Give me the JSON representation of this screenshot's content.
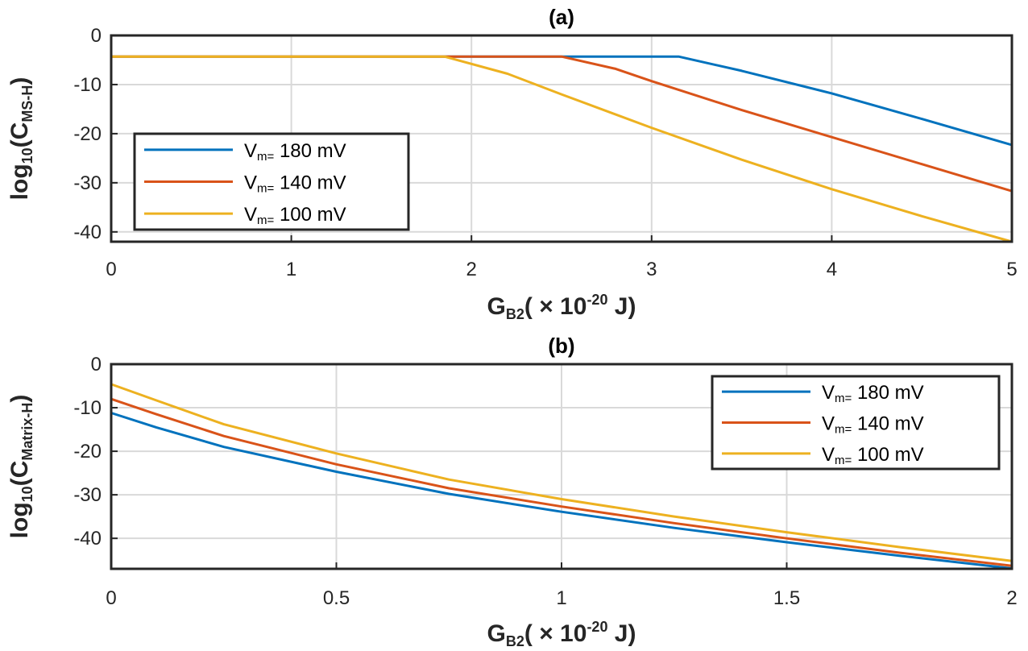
{
  "chart_data": [
    {
      "type": "line",
      "title": "(a)",
      "xlabel": {
        "main": "G",
        "sub": "B2",
        "rest": "( ×  10",
        "sup": "-20",
        "unit": "  J)"
      },
      "ylabel": {
        "main": "log",
        "sub1": "10",
        "open": "(C",
        "sub2": "MS-H",
        "close": ")"
      },
      "xlim": [
        0,
        5
      ],
      "ylim": [
        -42,
        0
      ],
      "xticks": [
        0,
        1,
        2,
        3,
        4,
        5
      ],
      "xtick_labels": [
        "0",
        "1",
        "2",
        "3",
        "4",
        "5"
      ],
      "yticks": [
        0,
        -10,
        -20,
        -30,
        -40
      ],
      "ytick_labels": [
        "0",
        "-10",
        "-20",
        "-30",
        "-40"
      ],
      "grid": true,
      "legend_position": "bottom-left",
      "series": [
        {
          "name": "180",
          "legend_var": "V",
          "legend_sub": "m=",
          "legend_unit": "mV",
          "color": "#0072BD",
          "x": [
            0,
            1,
            2,
            3,
            3.15,
            3.5,
            4,
            4.5,
            5
          ],
          "y": [
            -4.3,
            -4.3,
            -4.3,
            -4.3,
            -4.3,
            -7.2,
            -11.8,
            -17.0,
            -22.3
          ]
        },
        {
          "name": "140",
          "legend_var": "V",
          "legend_sub": "m=",
          "legend_unit": "mV",
          "color": "#D95319",
          "x": [
            0,
            1,
            2,
            2.5,
            2.8,
            3,
            3.5,
            4,
            4.5,
            5
          ],
          "y": [
            -4.3,
            -4.3,
            -4.3,
            -4.3,
            -6.8,
            -9.3,
            -15.2,
            -20.7,
            -26.2,
            -31.7
          ]
        },
        {
          "name": "100",
          "legend_var": "V",
          "legend_sub": "m=",
          "legend_unit": "mV",
          "color": "#EDB120",
          "x": [
            0,
            1,
            1.85,
            2.2,
            2.5,
            3,
            3.5,
            4,
            4.5,
            5
          ],
          "y": [
            -4.3,
            -4.3,
            -4.3,
            -7.8,
            -12.0,
            -18.8,
            -25.3,
            -31.3,
            -36.8,
            -42.0
          ]
        }
      ]
    },
    {
      "type": "line",
      "title": "(b)",
      "xlabel": {
        "main": "G",
        "sub": "B2",
        "rest": "( ×  10",
        "sup": "-20",
        "unit": "  J)"
      },
      "ylabel": {
        "main": "log",
        "sub1": "10",
        "open": "(C",
        "sub2": "Matrix-H",
        "close": ")"
      },
      "xlim": [
        0,
        2
      ],
      "ylim": [
        -47,
        0
      ],
      "xticks": [
        0,
        0.5,
        1,
        1.5,
        2
      ],
      "xtick_labels": [
        "0",
        "0.5",
        "1",
        "1.5",
        "2"
      ],
      "yticks": [
        0,
        -10,
        -20,
        -30,
        -40
      ],
      "ytick_labels": [
        "0",
        "-10",
        "-20",
        "-30",
        "-40"
      ],
      "grid": true,
      "legend_position": "top-right",
      "series": [
        {
          "name": "180",
          "legend_var": "V",
          "legend_sub": "m=",
          "legend_unit": "mV",
          "color": "#0072BD",
          "x": [
            0,
            0.1,
            0.25,
            0.5,
            0.75,
            1,
            1.25,
            1.5,
            1.75,
            2
          ],
          "y": [
            -11.2,
            -14.5,
            -19.0,
            -24.7,
            -29.8,
            -33.9,
            -37.6,
            -40.9,
            -44.0,
            -46.9
          ]
        },
        {
          "name": "140",
          "legend_var": "V",
          "legend_sub": "m=",
          "legend_unit": "mV",
          "color": "#D95319",
          "x": [
            0,
            0.1,
            0.25,
            0.5,
            0.75,
            1,
            1.25,
            1.5,
            1.75,
            2
          ],
          "y": [
            -8.0,
            -11.5,
            -16.5,
            -23.0,
            -28.5,
            -32.7,
            -36.5,
            -40.0,
            -43.3,
            -46.3
          ]
        },
        {
          "name": "100",
          "legend_var": "V",
          "legend_sub": "m=",
          "legend_unit": "mV",
          "color": "#EDB120",
          "x": [
            0,
            0.1,
            0.25,
            0.5,
            0.75,
            1,
            1.25,
            1.5,
            1.75,
            2
          ],
          "y": [
            -4.6,
            -8.3,
            -13.8,
            -20.5,
            -26.5,
            -31.0,
            -35.0,
            -38.6,
            -42.0,
            -45.2
          ]
        }
      ]
    }
  ]
}
